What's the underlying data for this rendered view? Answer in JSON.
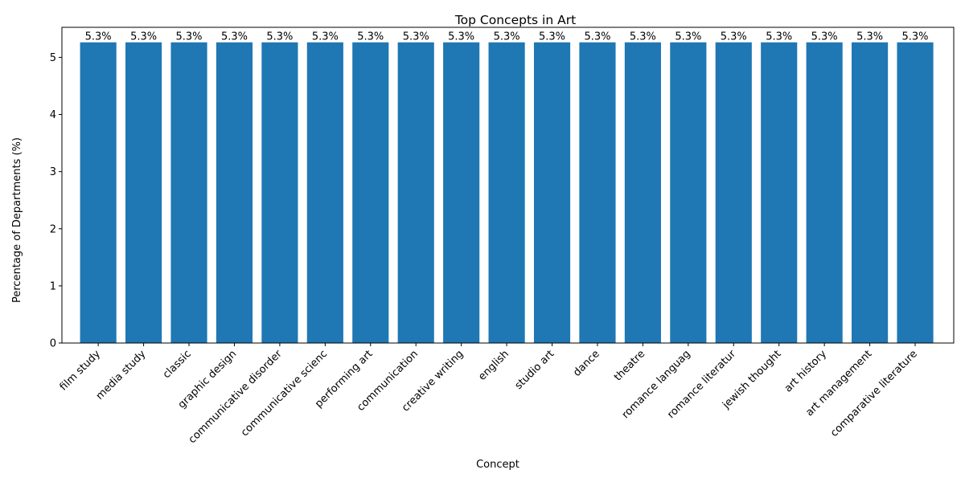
{
  "chart_data": {
    "type": "bar",
    "title": "Top Concepts in Art",
    "xlabel": "Concept",
    "ylabel": "Percentage of Departments (%)",
    "categories": [
      "film study",
      "media study",
      "classic",
      "graphic design",
      "communicative disorder",
      "communicative scienc",
      "performing art",
      "communication",
      "creative writing",
      "english",
      "studio art",
      "dance",
      "theatre",
      "romance languag",
      "romance literatur",
      "jewish thought",
      "art history",
      "art management",
      "comparative literature"
    ],
    "values": [
      5.263,
      5.263,
      5.263,
      5.263,
      5.263,
      5.263,
      5.263,
      5.263,
      5.263,
      5.263,
      5.263,
      5.263,
      5.263,
      5.263,
      5.263,
      5.263,
      5.263,
      5.263,
      5.263
    ],
    "data_labels": [
      "5.3%",
      "5.3%",
      "5.3%",
      "5.3%",
      "5.3%",
      "5.3%",
      "5.3%",
      "5.3%",
      "5.3%",
      "5.3%",
      "5.3%",
      "5.3%",
      "5.3%",
      "5.3%",
      "5.3%",
      "5.3%",
      "5.3%",
      "5.3%",
      "5.3%"
    ],
    "yticks": [
      0,
      1,
      2,
      3,
      4,
      5
    ],
    "ylim": [
      0,
      5.526
    ],
    "bar_color": "#1f77b4",
    "grid": false
  }
}
